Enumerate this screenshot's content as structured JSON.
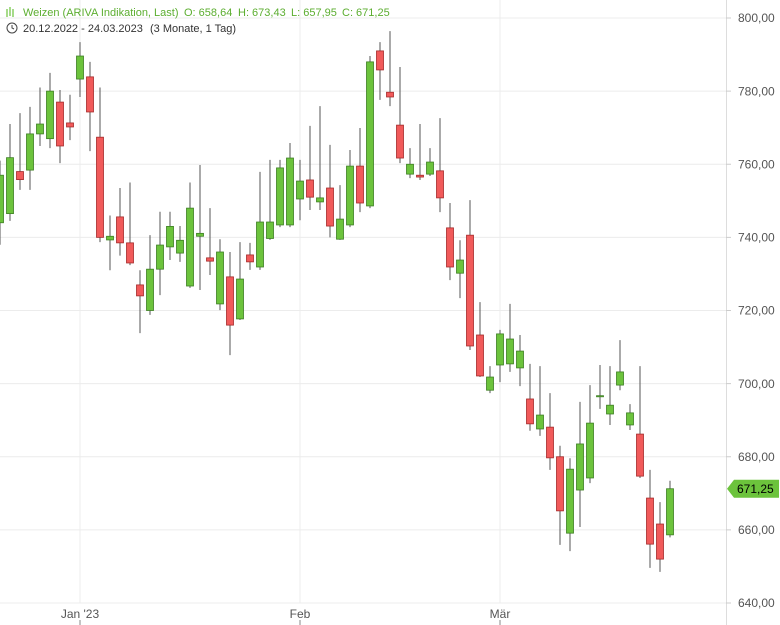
{
  "chart_data": {
    "type": "candlestick",
    "title": "Weizen (ARIVA Indikation, Last)",
    "summary": [
      "O: 658,64",
      "H: 673,43",
      "L: 657,95",
      "C: 671,25"
    ],
    "subtitle": "20.12.2022 - 24.03.2023",
    "period": "(3 Monate, 1 Tag)",
    "categories": [
      null,
      null,
      null,
      null,
      null,
      null,
      null,
      null,
      "Jan '23",
      null,
      null,
      null,
      null,
      null,
      null,
      null,
      null,
      null,
      null,
      null,
      null,
      null,
      null,
      null,
      null,
      null,
      null,
      null,
      null,
      null,
      "Feb",
      null,
      null,
      null,
      null,
      null,
      null,
      null,
      null,
      null,
      null,
      null,
      null,
      null,
      null,
      null,
      null,
      null,
      null,
      null,
      "Mär",
      null,
      null,
      null,
      null,
      null,
      null,
      null,
      null,
      null,
      null,
      null,
      null,
      null,
      null,
      null,
      null,
      null
    ],
    "open": [
      744,
      746.5,
      758,
      758.4,
      768.3,
      767,
      777,
      771.3,
      783.3,
      783.9,
      767.4,
      739.3,
      745.6,
      738.5,
      727,
      720,
      731.3,
      737.4,
      735.7,
      726.7,
      740.3,
      734.4,
      721.8,
      729.2,
      717.7,
      735.2,
      731.9,
      739.7,
      743.4,
      743.4,
      750.5,
      755.7,
      749.7,
      753.5,
      739.5,
      743.4,
      759.5,
      748.6,
      791,
      779.7,
      770.7,
      757.3,
      757,
      757.3,
      758.2,
      742.6,
      730.2,
      740.6,
      713.3,
      698.2,
      705.1,
      705.4,
      704.3,
      695.8,
      687.6,
      688.1,
      680,
      659.1,
      670.9,
      674.2,
      696.4,
      691.7,
      699.6,
      688.7,
      686.2,
      668.7,
      661.6,
      658.64
    ],
    "high": [
      761,
      771,
      774,
      775.7,
      781,
      785,
      780.3,
      779,
      793.4,
      788,
      781,
      746,
      753.5,
      755,
      731,
      740.6,
      747,
      747,
      743.1,
      755,
      759.8,
      748,
      739.5,
      736,
      738.7,
      738.5,
      757.9,
      761.2,
      761.2,
      765.8,
      761.2,
      770.5,
      775.9,
      765.3,
      754.3,
      763.9,
      769.9,
      789.6,
      793.4,
      796.4,
      786.6,
      764.4,
      771,
      764.4,
      772.6,
      749.4,
      739.2,
      750.2,
      722.3,
      704.8,
      714.7,
      721.8,
      713.3,
      705.4,
      704.8,
      697.4,
      683,
      679.6,
      695,
      699.6,
      705.1,
      704.8,
      711.9,
      694.4,
      704.8,
      676.4,
      667.6,
      673.43
    ],
    "low": [
      738,
      744.5,
      753,
      753,
      765,
      764.4,
      760.3,
      766.6,
      778.4,
      763.6,
      738.7,
      731,
      735,
      732.4,
      713.8,
      718.8,
      724.2,
      733.8,
      733.3,
      726.2,
      725.6,
      729.7,
      720.1,
      707.8,
      717.4,
      731.1,
      731.1,
      739.3,
      742.8,
      742.8,
      744.7,
      747.5,
      747.5,
      740,
      739.3,
      742.8,
      746.9,
      748,
      777.6,
      775.9,
      760.3,
      756.2,
      755.7,
      756.8,
      746.9,
      728.3,
      723.4,
      709.2,
      701.8,
      697.4,
      700.4,
      703.2,
      699.3,
      687.1,
      685.7,
      676.4,
      655.9,
      654.2,
      660.8,
      672.8,
      693.1,
      688.7,
      698.2,
      687.3,
      674.2,
      649.6,
      648.5,
      657.95
    ],
    "close": [
      757,
      761.8,
      755.8,
      768.3,
      771,
      780,
      765,
      770.2,
      789.6,
      774.3,
      740,
      740.3,
      738.5,
      733,
      724,
      731.3,
      737.9,
      743,
      739.2,
      748,
      741.1,
      733.5,
      736,
      716,
      728.6,
      733.3,
      744.2,
      744.2,
      759,
      761.7,
      755.4,
      751,
      750.8,
      743.1,
      745,
      759.5,
      749.4,
      788,
      785.8,
      778.4,
      761.7,
      760,
      756.5,
      760.6,
      750.8,
      731.9,
      733.8,
      710.3,
      702.1,
      701.8,
      713.6,
      712.2,
      708.9,
      689,
      691.4,
      679.7,
      665.2,
      676.6,
      683.5,
      689.2,
      696.7,
      694.1,
      703.2,
      692,
      674.7,
      656.1,
      652,
      671.25
    ],
    "up_color": "#6cc33c",
    "down_color": "#f15a5a",
    "ylim": [
      640,
      800
    ],
    "yticks": [
      {
        "value": 640,
        "label": "640,00"
      },
      {
        "value": 660,
        "label": "660,00"
      },
      {
        "value": 680,
        "label": "680,00"
      },
      {
        "value": 700,
        "label": "700,00"
      },
      {
        "value": 720,
        "label": "720,00"
      },
      {
        "value": 740,
        "label": "740,00"
      },
      {
        "value": 760,
        "label": "760,00"
      },
      {
        "value": 780,
        "label": "780,00"
      },
      {
        "value": 800,
        "label": "800,00"
      }
    ],
    "last": {
      "value": 671.25,
      "label": "671,25"
    },
    "grid": true
  }
}
